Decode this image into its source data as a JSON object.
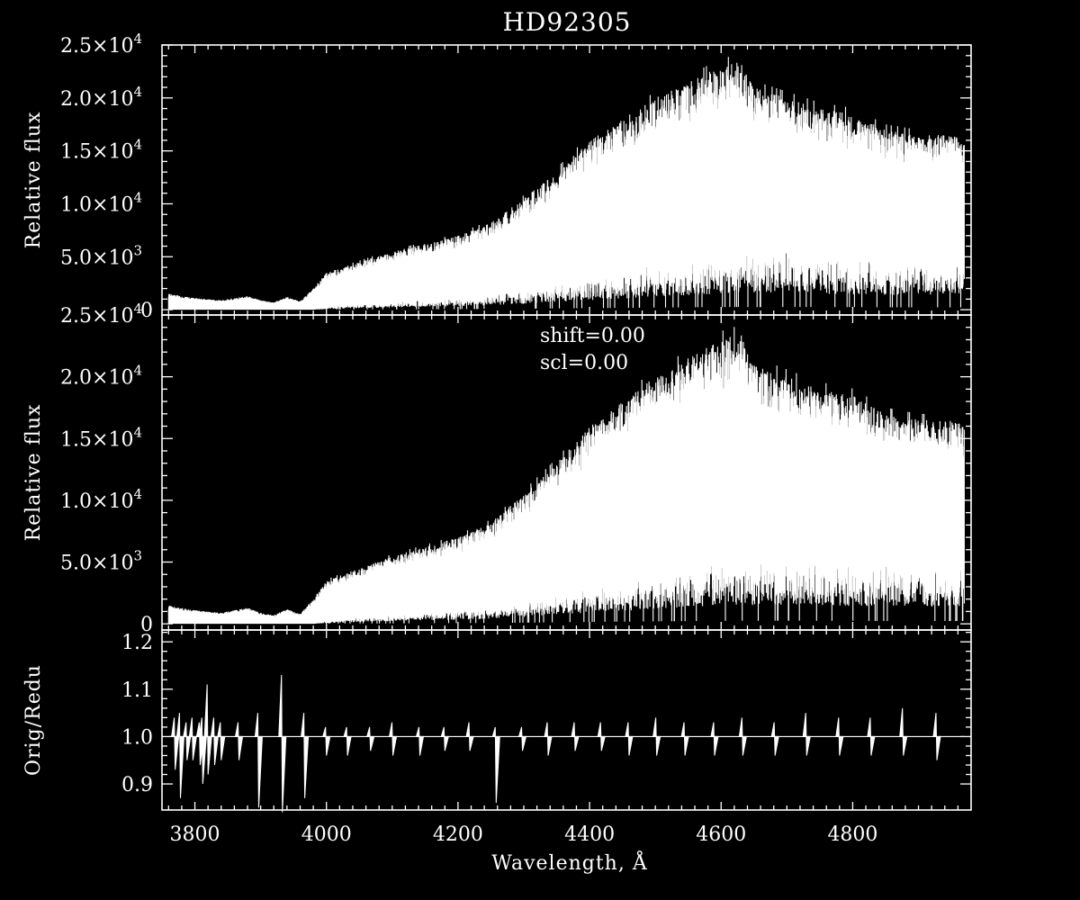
{
  "chart_data": [
    {
      "type": "line",
      "title": "HD92305",
      "ylabel": "Relative flux",
      "xlim": [
        3750,
        4980
      ],
      "ylim": [
        -500,
        25000
      ],
      "yticks": [
        {
          "value": 0,
          "label": "0"
        },
        {
          "value": 5000,
          "label": "5.0×10",
          "exp": "3"
        },
        {
          "value": 10000,
          "label": "1.0×10",
          "exp": "4"
        },
        {
          "value": 15000,
          "label": "1.5×10",
          "exp": "4"
        },
        {
          "value": 20000,
          "label": "2.0×10",
          "exp": "4"
        },
        {
          "value": 25000,
          "label": "2.5×10",
          "exp": "4"
        }
      ],
      "envelope": {
        "x": [
          3760,
          3800,
          3840,
          3880,
          3900,
          3920,
          3940,
          3960,
          3980,
          4000,
          4050,
          4100,
          4150,
          4200,
          4250,
          4300,
          4350,
          4400,
          4450,
          4500,
          4550,
          4600,
          4630,
          4650,
          4700,
          4750,
          4800,
          4850,
          4900,
          4950,
          4970
        ],
        "upper": [
          1500,
          1100,
          900,
          1300,
          900,
          700,
          1200,
          800,
          2000,
          3500,
          4500,
          5500,
          6200,
          7000,
          8200,
          10500,
          13000,
          16000,
          18000,
          20000,
          21500,
          23000,
          23500,
          21000,
          20000,
          19000,
          18500,
          17000,
          16500,
          16500,
          16000
        ],
        "lower": [
          0,
          0,
          0,
          0,
          0,
          0,
          0,
          0,
          0,
          200,
          500,
          700,
          900,
          1100,
          1400,
          1800,
          2500,
          3000,
          3500,
          4000,
          4500,
          5000,
          5200,
          5000,
          5200,
          5000,
          4800,
          4500,
          4500,
          4500,
          4500
        ]
      }
    },
    {
      "type": "line",
      "ylabel": "Relative flux",
      "annotations": [
        "shift=0.00",
        "scl=0.00"
      ],
      "xlim": [
        3750,
        4980
      ],
      "ylim": [
        -500,
        25000
      ],
      "yticks": [
        {
          "value": 0,
          "label": "0"
        },
        {
          "value": 5000,
          "label": "5.0×10",
          "exp": "3"
        },
        {
          "value": 10000,
          "label": "1.0×10",
          "exp": "4"
        },
        {
          "value": 15000,
          "label": "1.5×10",
          "exp": "4"
        },
        {
          "value": 20000,
          "label": "2.0×10",
          "exp": "4"
        },
        {
          "value": 25000,
          "label": "2.5×10",
          "exp": "4"
        }
      ],
      "envelope": {
        "x": [
          3760,
          3800,
          3840,
          3880,
          3900,
          3920,
          3940,
          3960,
          3980,
          4000,
          4050,
          4100,
          4150,
          4200,
          4250,
          4300,
          4350,
          4400,
          4450,
          4500,
          4550,
          4600,
          4630,
          4650,
          4700,
          4750,
          4800,
          4850,
          4900,
          4950,
          4970
        ],
        "upper": [
          1500,
          1100,
          900,
          1300,
          900,
          700,
          1200,
          800,
          2000,
          3500,
          4500,
          5500,
          6200,
          7000,
          8200,
          10500,
          13000,
          16000,
          18000,
          20000,
          21500,
          23000,
          23500,
          21000,
          20000,
          19000,
          18500,
          17000,
          16500,
          16500,
          16000
        ],
        "lower": [
          0,
          0,
          0,
          0,
          0,
          0,
          0,
          0,
          0,
          200,
          500,
          700,
          900,
          1100,
          1400,
          1800,
          2500,
          3000,
          3500,
          4000,
          4500,
          5000,
          5200,
          5000,
          5200,
          5000,
          4800,
          4500,
          4500,
          4500,
          4500
        ]
      }
    },
    {
      "type": "line",
      "ylabel": "Orig/Redu",
      "xlabel": "Wavelength, Å",
      "xlim": [
        3750,
        4980
      ],
      "ylim": [
        0.845,
        1.225
      ],
      "yticks": [
        {
          "value": 0.9,
          "label": "0.9"
        },
        {
          "value": 1.0,
          "label": "1.0"
        },
        {
          "value": 1.1,
          "label": "1.1"
        },
        {
          "value": 1.2,
          "label": "1.2"
        }
      ],
      "xticks": [
        3800,
        4000,
        4200,
        4400,
        4600,
        4800
      ],
      "baseline": 1.0,
      "glitches": [
        {
          "x": 3770,
          "hi": 1.04,
          "lo": 0.93
        },
        {
          "x": 3778,
          "hi": 1.05,
          "lo": 0.87
        },
        {
          "x": 3788,
          "hi": 1.03,
          "lo": 0.95
        },
        {
          "x": 3797,
          "hi": 1.04,
          "lo": 0.95
        },
        {
          "x": 3808,
          "hi": 1.03,
          "lo": 0.94
        },
        {
          "x": 3812,
          "hi": 1.04,
          "lo": 0.9
        },
        {
          "x": 3820,
          "hi": 1.11,
          "lo": 0.92
        },
        {
          "x": 3830,
          "hi": 1.04,
          "lo": 0.94
        },
        {
          "x": 3840,
          "hi": 1.03,
          "lo": 0.95
        },
        {
          "x": 3867,
          "hi": 1.03,
          "lo": 0.95
        },
        {
          "x": 3897,
          "hi": 1.05,
          "lo": 0.85
        },
        {
          "x": 3933,
          "hi": 1.13,
          "lo": 0.84
        },
        {
          "x": 3967,
          "hi": 1.05,
          "lo": 0.87
        },
        {
          "x": 4000,
          "hi": 1.02,
          "lo": 0.96
        },
        {
          "x": 4032,
          "hi": 1.02,
          "lo": 0.96
        },
        {
          "x": 4067,
          "hi": 1.02,
          "lo": 0.97
        },
        {
          "x": 4101,
          "hi": 1.03,
          "lo": 0.96
        },
        {
          "x": 4142,
          "hi": 1.02,
          "lo": 0.96
        },
        {
          "x": 4180,
          "hi": 1.02,
          "lo": 0.97
        },
        {
          "x": 4218,
          "hi": 1.03,
          "lo": 0.97
        },
        {
          "x": 4258,
          "hi": 1.02,
          "lo": 0.86
        },
        {
          "x": 4298,
          "hi": 1.02,
          "lo": 0.97
        },
        {
          "x": 4337,
          "hi": 1.03,
          "lo": 0.96
        },
        {
          "x": 4378,
          "hi": 1.03,
          "lo": 0.97
        },
        {
          "x": 4418,
          "hi": 1.03,
          "lo": 0.97
        },
        {
          "x": 4460,
          "hi": 1.03,
          "lo": 0.96
        },
        {
          "x": 4502,
          "hi": 1.04,
          "lo": 0.96
        },
        {
          "x": 4545,
          "hi": 1.03,
          "lo": 0.96
        },
        {
          "x": 4590,
          "hi": 1.03,
          "lo": 0.96
        },
        {
          "x": 4633,
          "hi": 1.04,
          "lo": 0.96
        },
        {
          "x": 4682,
          "hi": 1.03,
          "lo": 0.96
        },
        {
          "x": 4730,
          "hi": 1.05,
          "lo": 0.96
        },
        {
          "x": 4780,
          "hi": 1.04,
          "lo": 0.96
        },
        {
          "x": 4828,
          "hi": 1.04,
          "lo": 0.96
        },
        {
          "x": 4877,
          "hi": 1.06,
          "lo": 0.96
        },
        {
          "x": 4928,
          "hi": 1.05,
          "lo": 0.95
        }
      ]
    }
  ]
}
